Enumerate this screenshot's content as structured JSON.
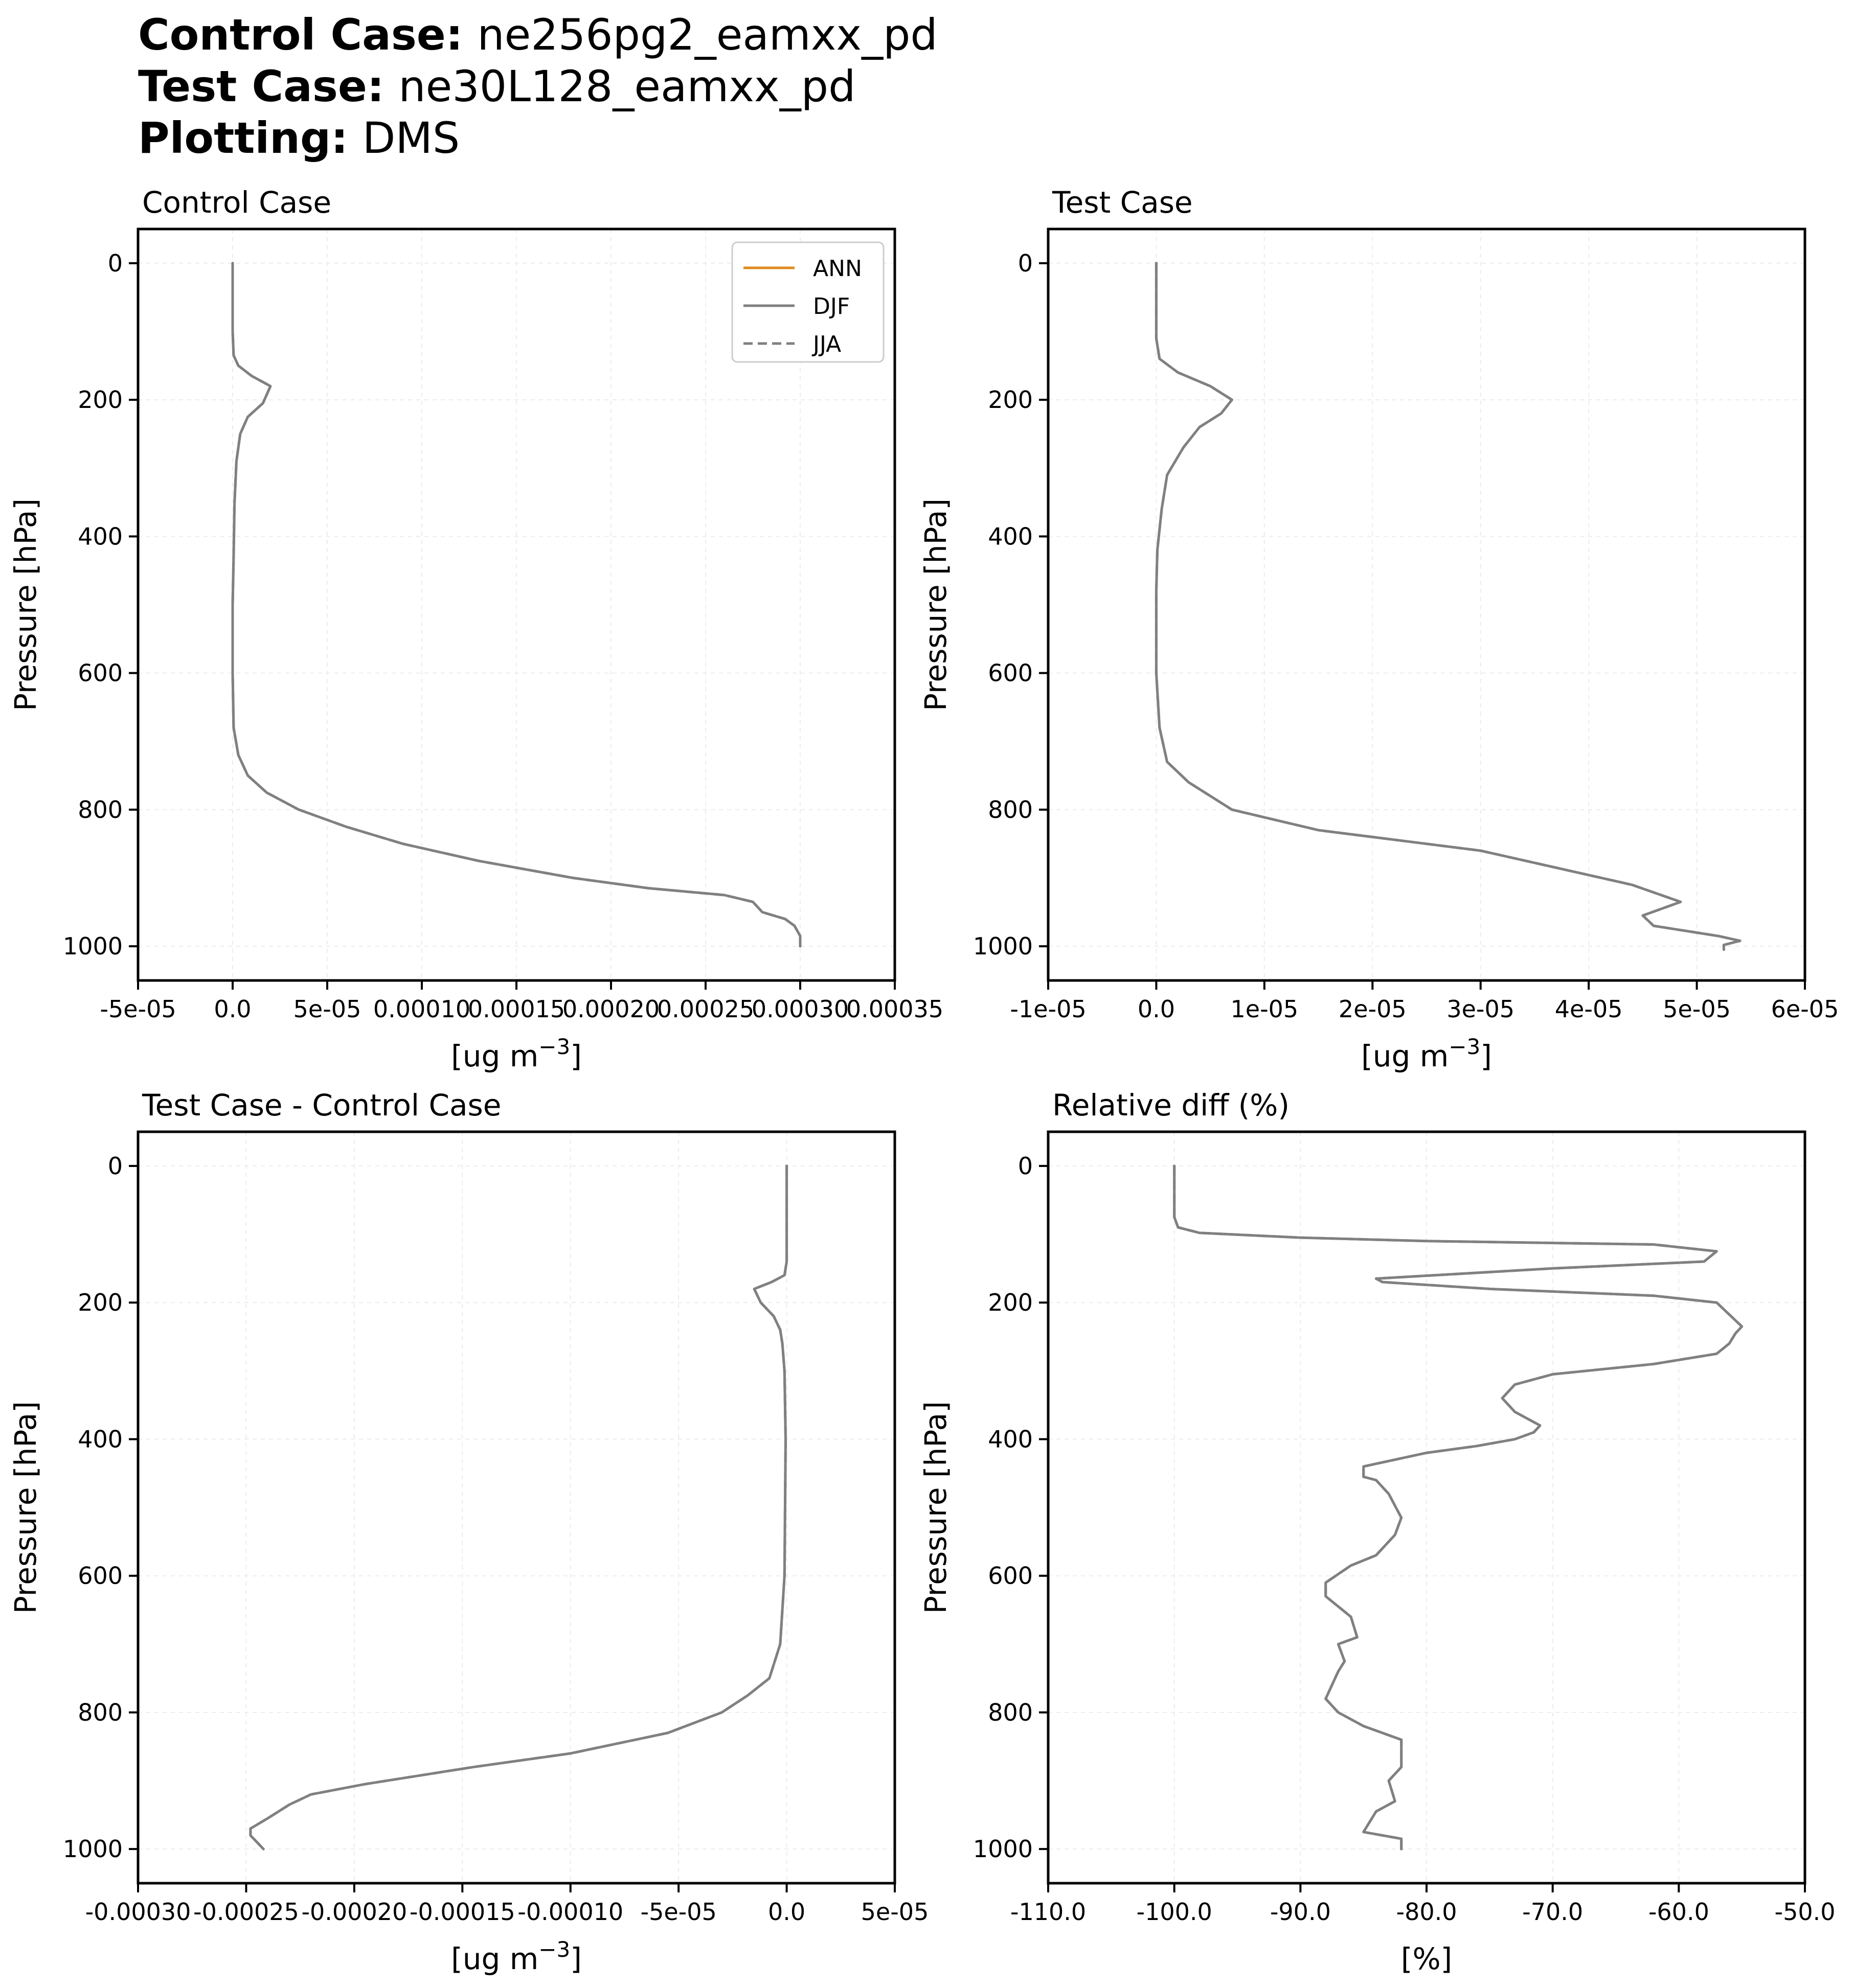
{
  "header": {
    "lines": [
      {
        "key": "Control Case",
        "sep": ":",
        "value": "ne256pg2_eamxx_pd"
      },
      {
        "key": "Test Case",
        "sep": ":",
        "value": "ne30L128_eamxx_pd"
      },
      {
        "key": "Plotting",
        "sep": ":",
        "value": "DMS"
      }
    ]
  },
  "colors": {
    "ANN": "#e08a1e",
    "DJF": "#808080",
    "JJA": "#808080",
    "axis": "#000000",
    "grid": "#ececec"
  },
  "legend": {
    "placement": "top-right of first panel",
    "entries": [
      {
        "label": "ANN",
        "style": "solid",
        "color": "#e08a1e"
      },
      {
        "label": "DJF",
        "style": "solid",
        "color": "#808080"
      },
      {
        "label": "JJA",
        "style": "dashed",
        "color": "#808080"
      }
    ]
  },
  "chart_data": [
    {
      "type": "line",
      "title": "Control Case",
      "xlabel": "[ug m⁻³]",
      "ylabel": "Pressure [hPa]",
      "xlim": [
        -5e-05,
        0.00035
      ],
      "ylim": [
        1050,
        -50
      ],
      "xticks": [
        -5e-05,
        0,
        5e-05,
        0.0001,
        0.00015,
        0.0002,
        0.00025,
        0.0003,
        0.00035
      ],
      "xtick_labels": [
        "-5e-05",
        "0.0",
        "5e-05",
        "0.00010",
        "0.00015",
        "0.00020",
        "0.00025",
        "0.00030",
        "0.00035"
      ],
      "yticks": [
        0,
        200,
        400,
        600,
        800,
        1000
      ],
      "ytick_labels": [
        "0",
        "200",
        "400",
        "600",
        "800",
        "1000"
      ],
      "grid": true,
      "series": [
        {
          "name": "DJF",
          "style": "solid",
          "color": "#808080",
          "x": [
            0,
            0,
            5e-07,
            3e-06,
            1e-05,
            2e-05,
            1.6e-05,
            8e-06,
            4e-06,
            2e-06,
            1e-06,
            5e-07,
            0,
            0,
            5e-07,
            3e-06,
            8e-06,
            1.8e-05,
            3.5e-05,
            6e-05,
            9e-05,
            0.00013,
            0.00018,
            0.00022,
            0.00026,
            0.000275,
            0.00028,
            0.000292,
            0.000297,
            0.0003,
            0.0003
          ],
          "y": [
            0,
            100,
            135,
            150,
            165,
            180,
            205,
            225,
            250,
            290,
            350,
            430,
            500,
            600,
            680,
            720,
            750,
            775,
            800,
            825,
            850,
            875,
            900,
            915,
            925,
            935,
            950,
            960,
            970,
            985,
            1000
          ]
        },
        {
          "name": "JJA",
          "style": "dashed",
          "color": "#808080",
          "x": [
            0,
            0,
            5e-07,
            3e-06,
            1e-05,
            2e-05,
            1.6e-05,
            8e-06,
            4e-06,
            2e-06,
            1e-06,
            5e-07,
            0,
            0,
            5e-07,
            3e-06,
            8e-06,
            1.8e-05,
            3.5e-05,
            6e-05,
            9e-05,
            0.00013,
            0.00018,
            0.00022,
            0.00026,
            0.000275,
            0.00028,
            0.000292,
            0.000297,
            0.0003,
            0.0003
          ],
          "y": [
            0,
            100,
            135,
            150,
            165,
            180,
            205,
            225,
            250,
            290,
            350,
            430,
            500,
            600,
            680,
            720,
            750,
            775,
            800,
            825,
            850,
            875,
            900,
            915,
            925,
            935,
            950,
            960,
            970,
            985,
            1000
          ]
        }
      ]
    },
    {
      "type": "line",
      "title": "Test Case",
      "xlabel": "[ug m⁻³]",
      "ylabel": "Pressure [hPa]",
      "xlim": [
        -1e-05,
        6e-05
      ],
      "ylim": [
        1050,
        -50
      ],
      "xticks": [
        -1e-05,
        0,
        1e-05,
        2e-05,
        3e-05,
        4e-05,
        5e-05,
        6e-05
      ],
      "xtick_labels": [
        "-1e-05",
        "0.0",
        "1e-05",
        "2e-05",
        "3e-05",
        "4e-05",
        "5e-05",
        "6e-05"
      ],
      "yticks": [
        0,
        200,
        400,
        600,
        800,
        1000
      ],
      "ytick_labels": [
        "0",
        "200",
        "400",
        "600",
        "800",
        "1000"
      ],
      "grid": true,
      "series": [
        {
          "name": "DJF",
          "style": "solid",
          "color": "#808080",
          "x": [
            0,
            0,
            3e-07,
            2e-06,
            5e-06,
            7e-06,
            6e-06,
            4e-06,
            2.5e-06,
            1e-06,
            5e-07,
            1e-07,
            0,
            0,
            3e-07,
            1e-06,
            3e-06,
            7e-06,
            1.5e-05,
            3e-05,
            4.4e-05,
            4.85e-05,
            4.5e-05,
            4.6e-05,
            5.2e-05,
            5.4e-05,
            5.25e-05,
            5.25e-05
          ],
          "y": [
            0,
            110,
            140,
            160,
            180,
            200,
            220,
            240,
            270,
            310,
            360,
            420,
            480,
            600,
            680,
            730,
            760,
            800,
            830,
            860,
            910,
            935,
            955,
            970,
            985,
            992,
            998,
            1005
          ]
        },
        {
          "name": "JJA",
          "style": "dashed",
          "color": "#808080",
          "x": [
            0,
            0,
            3e-07,
            2e-06,
            5e-06,
            7e-06,
            6e-06,
            4e-06,
            2.5e-06,
            1e-06,
            5e-07,
            1e-07,
            0,
            0,
            3e-07,
            1e-06,
            3e-06,
            7e-06,
            1.5e-05,
            3e-05,
            4.4e-05,
            4.85e-05,
            4.5e-05,
            4.6e-05,
            5.2e-05,
            5.4e-05,
            5.25e-05,
            5.25e-05
          ],
          "y": [
            0,
            110,
            140,
            160,
            180,
            200,
            220,
            240,
            270,
            310,
            360,
            420,
            480,
            600,
            680,
            730,
            760,
            800,
            830,
            860,
            910,
            935,
            955,
            970,
            985,
            992,
            998,
            1005
          ]
        }
      ]
    },
    {
      "type": "line",
      "title": "Test Case - Control Case",
      "xlabel": "[ug m⁻³]",
      "ylabel": "Pressure [hPa]",
      "xlim": [
        -0.0003,
        5e-05
      ],
      "ylim": [
        1050,
        -50
      ],
      "xticks": [
        -0.0003,
        -0.00025,
        -0.0002,
        -0.00015,
        -0.0001,
        -5e-05,
        0,
        5e-05
      ],
      "xtick_labels": [
        "-0.00030",
        "-0.00025",
        "-0.00020",
        "-0.00015",
        "-0.00010",
        "-5e-05",
        "0.0",
        "5e-05"
      ],
      "yticks": [
        0,
        200,
        400,
        600,
        800,
        1000
      ],
      "ytick_labels": [
        "0",
        "200",
        "400",
        "600",
        "800",
        "1000"
      ],
      "grid": true,
      "series": [
        {
          "name": "DJF",
          "style": "solid",
          "color": "#808080",
          "x": [
            0,
            0,
            -1e-06,
            -7e-06,
            -1.5e-05,
            -1.2e-05,
            -6e-06,
            -3e-06,
            -2e-06,
            -1e-06,
            -5e-07,
            -1e-06,
            -3e-06,
            -8e-06,
            -1.8e-05,
            -3e-05,
            -5.5e-05,
            -0.0001,
            -0.000145,
            -0.000195,
            -0.00022,
            -0.00023,
            -0.00024,
            -0.000248,
            -0.000248,
            -0.000245,
            -0.000242
          ],
          "y": [
            0,
            140,
            160,
            170,
            180,
            200,
            220,
            240,
            260,
            300,
            400,
            600,
            700,
            750,
            775,
            800,
            830,
            860,
            880,
            905,
            920,
            935,
            955,
            970,
            980,
            990,
            1000
          ]
        },
        {
          "name": "JJA",
          "style": "dashed",
          "color": "#808080",
          "x": [
            0,
            0,
            -1e-06,
            -7e-06,
            -1.5e-05,
            -1.2e-05,
            -6e-06,
            -3e-06,
            -2e-06,
            -1e-06,
            -5e-07,
            -1e-06,
            -3e-06,
            -8e-06,
            -1.8e-05,
            -3e-05,
            -5.5e-05,
            -0.0001,
            -0.000145,
            -0.000195,
            -0.00022,
            -0.00023,
            -0.00024,
            -0.000248,
            -0.000248,
            -0.000245,
            -0.000242
          ],
          "y": [
            0,
            140,
            160,
            170,
            180,
            200,
            220,
            240,
            260,
            300,
            400,
            600,
            700,
            750,
            775,
            800,
            830,
            860,
            880,
            905,
            920,
            935,
            955,
            970,
            980,
            990,
            1000
          ]
        }
      ]
    },
    {
      "type": "line",
      "title": "Relative diff (%)",
      "xlabel": "[%]",
      "ylabel": "Pressure [hPa]",
      "xlim": [
        -110,
        -50
      ],
      "ylim": [
        1050,
        -50
      ],
      "xticks": [
        -110,
        -100,
        -90,
        -80,
        -70,
        -60,
        -50
      ],
      "xtick_labels": [
        "-110.0",
        "-100.0",
        "-90.0",
        "-80.0",
        "-70.0",
        "-60.0",
        "-50.0"
      ],
      "yticks": [
        0,
        200,
        400,
        600,
        800,
        1000
      ],
      "ytick_labels": [
        "0",
        "200",
        "400",
        "600",
        "800",
        "1000"
      ],
      "grid": true,
      "series": [
        {
          "name": "DJF",
          "style": "solid",
          "color": "#808080",
          "x": [
            -100,
            -100,
            -99.7,
            -98,
            -90,
            -80,
            -62,
            -57,
            -58,
            -70,
            -84,
            -83.5,
            -75,
            -62,
            -57,
            -55,
            -55.5,
            -56,
            -57,
            -62,
            -70,
            -73,
            -74,
            -73,
            -71,
            -71.5,
            -73,
            -76,
            -80,
            -85,
            -85,
            -84,
            -83,
            -82,
            -82.5,
            -83,
            -84,
            -86,
            -88,
            -88,
            -86,
            -85.5,
            -87,
            -86.5,
            -87,
            -88,
            -87,
            -85,
            -82,
            -82,
            -83,
            -82.5,
            -84,
            -85,
            -82,
            -82
          ],
          "y": [
            0,
            75,
            90,
            98,
            105,
            110,
            115,
            125,
            140,
            150,
            165,
            170,
            180,
            190,
            200,
            235,
            245,
            260,
            275,
            290,
            305,
            320,
            340,
            360,
            380,
            390,
            400,
            410,
            420,
            440,
            455,
            460,
            480,
            515,
            540,
            550,
            570,
            585,
            610,
            630,
            660,
            690,
            700,
            725,
            740,
            780,
            800,
            820,
            840,
            880,
            900,
            930,
            945,
            975,
            985,
            1000
          ]
        },
        {
          "name": "JJA",
          "style": "dashed",
          "color": "#808080",
          "x": [
            -100,
            -100,
            -99.7,
            -98,
            -90,
            -80,
            -62,
            -57,
            -58,
            -70,
            -84,
            -83.5,
            -75,
            -62,
            -57,
            -55,
            -55.5,
            -56,
            -57,
            -62,
            -70,
            -73,
            -74,
            -73,
            -71,
            -71.5,
            -73,
            -76,
            -80,
            -85,
            -85,
            -84,
            -83,
            -82,
            -82.5,
            -83,
            -84,
            -86,
            -88,
            -88,
            -86,
            -85.5,
            -87,
            -86.5,
            -87,
            -88,
            -87,
            -85,
            -82,
            -82,
            -83,
            -82.5,
            -84,
            -85,
            -82,
            -82
          ],
          "y": [
            0,
            75,
            90,
            98,
            105,
            110,
            115,
            125,
            140,
            150,
            165,
            170,
            180,
            190,
            200,
            235,
            245,
            260,
            275,
            290,
            305,
            320,
            340,
            360,
            380,
            390,
            400,
            410,
            420,
            440,
            455,
            460,
            480,
            515,
            540,
            550,
            570,
            585,
            610,
            630,
            660,
            690,
            700,
            725,
            740,
            780,
            800,
            820,
            840,
            880,
            900,
            930,
            945,
            975,
            985,
            1000
          ]
        }
      ]
    }
  ]
}
